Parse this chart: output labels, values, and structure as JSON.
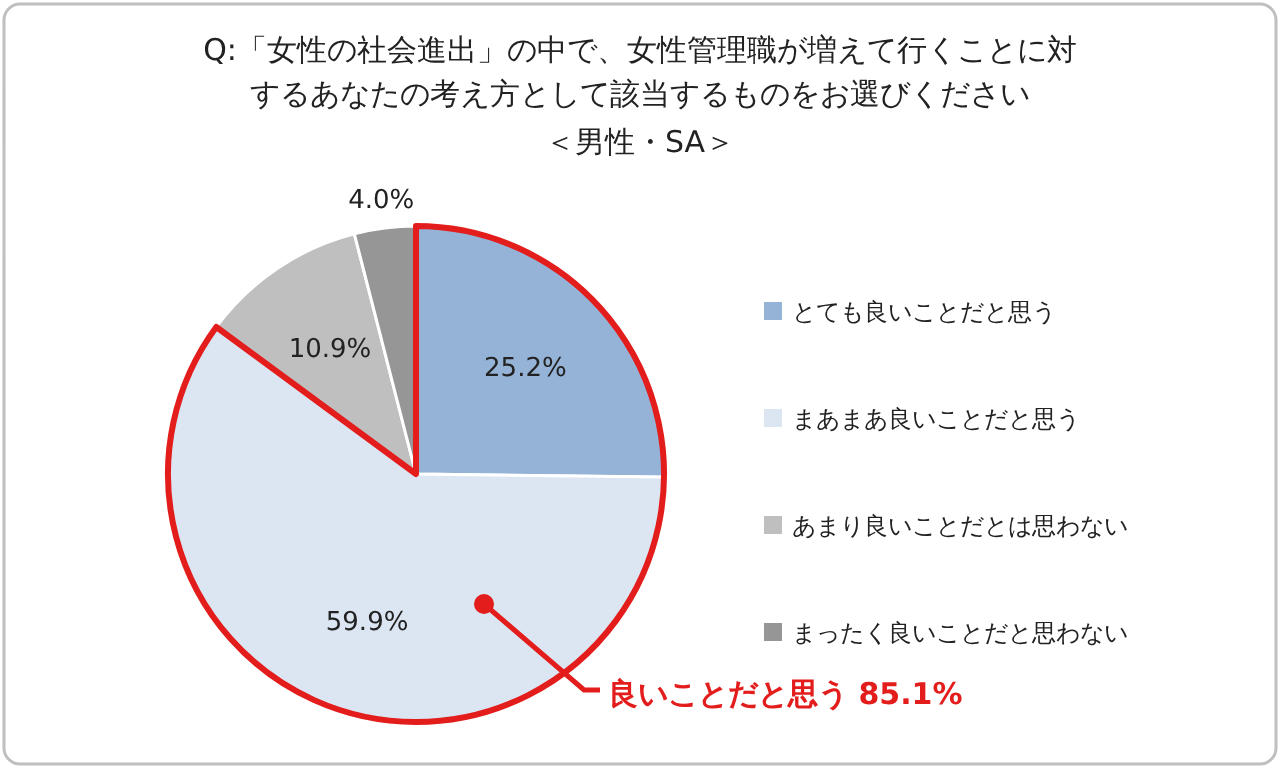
{
  "chart_data": {
    "type": "pie",
    "title": "Q:「女性の社会進出」の中で、女性管理職が増えて行くことに対するあなたの考え方として該当するものをお選びください",
    "subtitle": "＜男性・SA＞",
    "categories": [
      "とても良いことだと思う",
      "まあまあ良いことだと思う",
      "あまり良いことだとは思わない",
      "まったく良いことだと思わない"
    ],
    "values": [
      25.2,
      59.9,
      10.9,
      4.0
    ],
    "colors": [
      "#95b3d7",
      "#dce6f2",
      "#bfbfbf",
      "#969696"
    ],
    "value_labels": [
      "25.2%",
      "59.9%",
      "10.9%",
      "4.0%"
    ],
    "legend": "right",
    "annotations": [
      "良いことだと思う 85.1%"
    ]
  }
}
